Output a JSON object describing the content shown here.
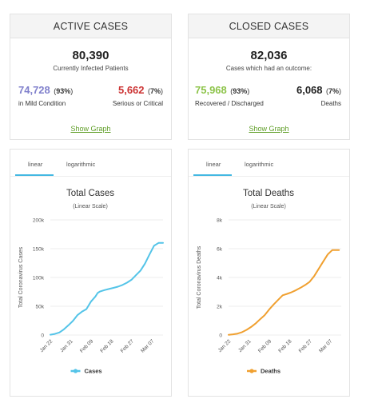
{
  "active": {
    "header": "ACTIVE CASES",
    "total": "80,390",
    "subtitle": "Currently Infected Patients",
    "mild_value": "74,728",
    "mild_pct": "93%",
    "mild_label": "in Mild Condition",
    "serious_value": "5,662",
    "serious_pct": "7%",
    "serious_label": "Serious or Critical",
    "show_graph": "Show Graph"
  },
  "closed": {
    "header": "CLOSED CASES",
    "total": "82,036",
    "subtitle": "Cases which had an outcome:",
    "recovered_value": "75,968",
    "recovered_pct": "93%",
    "recovered_label": "Recovered / Discharged",
    "deaths_value": "6,068",
    "deaths_pct": "7%",
    "deaths_label": "Deaths",
    "show_graph": "Show Graph"
  },
  "colors": {
    "mild": "#8080cc",
    "serious": "#cc3333",
    "recovered": "#8dc44a",
    "link": "#5f9e27",
    "cases_line": "#54c4e8",
    "deaths_line": "#f0a030",
    "tab_accent": "#43b8e2"
  },
  "cases_chart_tabs": {
    "linear": "linear",
    "log": "logarithmic"
  },
  "deaths_chart_tabs": {
    "linear": "linear",
    "log": "logarithmic"
  },
  "chart_data": [
    {
      "type": "line",
      "title": "Total Cases",
      "subtitle": "(Linear Scale)",
      "ylabel": "Total Coronavirus Cases",
      "xlabel": "",
      "ylim": [
        0,
        200000
      ],
      "yticks": [
        0,
        50000,
        100000,
        150000,
        200000
      ],
      "ytick_labels": [
        "0",
        "50k",
        "100k",
        "150k",
        "200k"
      ],
      "xtick_labels": [
        "Jan 22",
        "Jan 31",
        "Feb 09",
        "Feb 18",
        "Feb 27",
        "Mar 07"
      ],
      "xtick_days": [
        0,
        9,
        18,
        27,
        36,
        45
      ],
      "x_range_days": [
        0,
        50
      ],
      "grid": true,
      "legend": "bottom",
      "series": [
        {
          "name": "Cases",
          "x_days": [
            0,
            2,
            4,
            6,
            8,
            10,
            12,
            14,
            16,
            18,
            20,
            21,
            22,
            24,
            26,
            28,
            30,
            32,
            34,
            36,
            38,
            40,
            42,
            44,
            46,
            48,
            50
          ],
          "values": [
            580,
            2000,
            4500,
            9800,
            17000,
            24500,
            34500,
            40500,
            45000,
            58000,
            67000,
            73000,
            75500,
            78000,
            80000,
            82000,
            84000,
            87000,
            91000,
            96000,
            104000,
            112000,
            124000,
            140000,
            155000,
            160000,
            160000
          ]
        }
      ]
    },
    {
      "type": "line",
      "title": "Total Deaths",
      "subtitle": "(Linear Scale)",
      "ylabel": "Total Coronavirus Deaths",
      "xlabel": "",
      "ylim": [
        0,
        8000
      ],
      "yticks": [
        0,
        2000,
        4000,
        6000,
        8000
      ],
      "ytick_labels": [
        "0",
        "2k",
        "4k",
        "6k",
        "8k"
      ],
      "xtick_labels": [
        "Jan 22",
        "Jan 31",
        "Feb 09",
        "Feb 18",
        "Feb 27",
        "Mar 07"
      ],
      "xtick_days": [
        0,
        9,
        18,
        27,
        36,
        45
      ],
      "x_range_days": [
        0,
        50
      ],
      "grid": true,
      "legend": "bottom",
      "series": [
        {
          "name": "Deaths",
          "x_days": [
            0,
            2,
            4,
            6,
            8,
            10,
            12,
            14,
            16,
            18,
            20,
            22,
            24,
            26,
            28,
            30,
            32,
            34,
            36,
            38,
            40,
            42,
            44,
            46,
            48,
            49
          ],
          "values": [
            17,
            50,
            100,
            200,
            360,
            560,
            800,
            1100,
            1370,
            1770,
            2120,
            2440,
            2760,
            2860,
            2980,
            3120,
            3290,
            3480,
            3700,
            4100,
            4600,
            5100,
            5600,
            5900,
            5900,
            5900
          ]
        }
      ]
    }
  ]
}
